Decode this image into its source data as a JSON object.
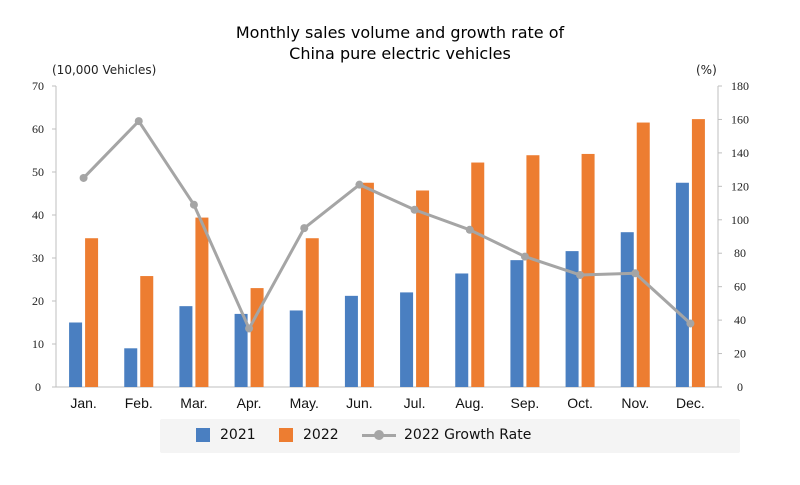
{
  "chart_data": {
    "type": "bar",
    "title_line1": "Monthly sales volume and growth rate of",
    "title_line2": "China pure electric vehicles",
    "ylabel_left": "(10,000 Vehicles)",
    "ylabel_right": "(%)",
    "categories": [
      "Jan.",
      "Feb.",
      "Mar.",
      "Apr.",
      "May.",
      "Jun.",
      "Jul.",
      "Aug.",
      "Sep.",
      "Oct.",
      "Nov.",
      "Dec."
    ],
    "ylim_left": [
      0,
      70
    ],
    "yticks_left": [
      0,
      10,
      20,
      30,
      40,
      50,
      60,
      70
    ],
    "ylim_right": [
      0,
      180
    ],
    "yticks_right": [
      0,
      20,
      40,
      60,
      80,
      100,
      120,
      140,
      160,
      180
    ],
    "series": [
      {
        "name": "2021",
        "type": "bar",
        "axis": "left",
        "color": "#4a7fc1",
        "values": [
          15,
          9,
          18.8,
          17,
          17.8,
          21.2,
          22,
          26.4,
          29.5,
          31.6,
          36,
          47.5
        ]
      },
      {
        "name": "2022",
        "type": "bar",
        "axis": "left",
        "color": "#ed7d31",
        "values": [
          34.6,
          25.8,
          39.4,
          23,
          34.6,
          47.5,
          45.7,
          52.2,
          53.9,
          54.2,
          61.5,
          62.3
        ]
      },
      {
        "name": "2022 Growth Rate",
        "type": "line",
        "axis": "right",
        "color": "#a5a5a5",
        "values": [
          125,
          159,
          109,
          35,
          95,
          121,
          106,
          94,
          78,
          67,
          68,
          38
        ]
      }
    ],
    "legend_position": "bottom",
    "grid": false
  }
}
